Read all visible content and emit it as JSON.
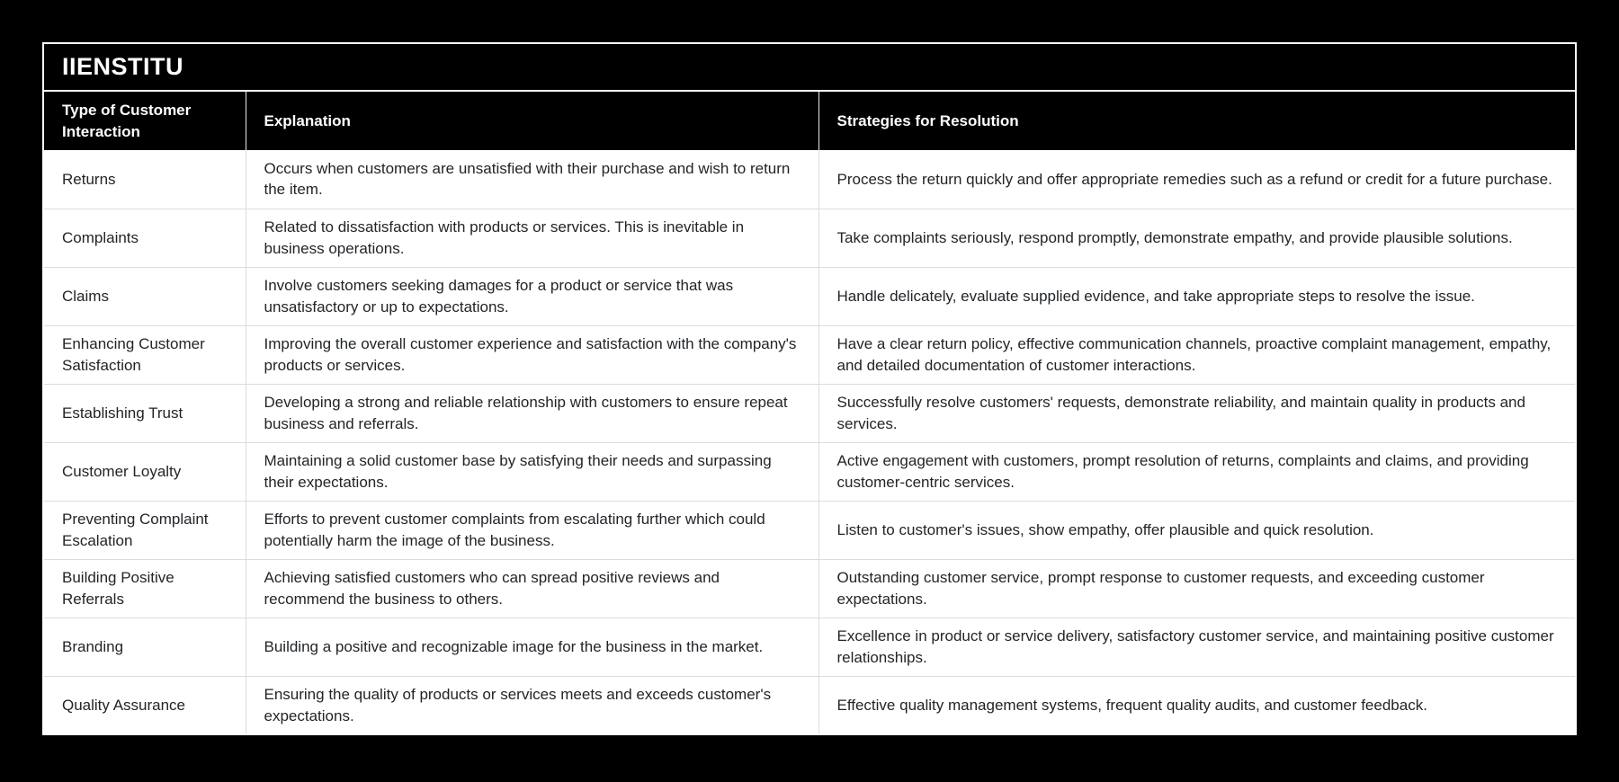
{
  "page": {
    "background_color": "#000000"
  },
  "card": {
    "title": "IIENSTITU",
    "border_color": "#ffffff",
    "title_bg_color": "#000000",
    "title_text_color": "#ffffff"
  },
  "table": {
    "header_bg_color": "#000000",
    "header_text_color": "#ffffff",
    "body_bg_color": "#ffffff",
    "body_text_color": "#212529",
    "grid_line_color": "#dcdcdc",
    "columns": [
      "Type of Customer Interaction",
      "Explanation",
      "Strategies for Resolution"
    ],
    "rows": [
      {
        "type": "Returns",
        "explanation": "Occurs when customers are unsatisfied with their purchase and wish to return the item.",
        "strategy": "Process the return quickly and offer appropriate remedies such as a refund or credit for a future purchase."
      },
      {
        "type": "Complaints",
        "explanation": "Related to dissatisfaction with products or services. This is inevitable in business operations.",
        "strategy": "Take complaints seriously, respond promptly, demonstrate empathy, and provide plausible solutions."
      },
      {
        "type": "Claims",
        "explanation": "Involve customers seeking damages for a product or service that was unsatisfactory or up to expectations.",
        "strategy": "Handle delicately, evaluate supplied evidence, and take appropriate steps to resolve the issue."
      },
      {
        "type": "Enhancing Customer Satisfaction",
        "explanation": "Improving the overall customer experience and satisfaction with the company's products or services.",
        "strategy": "Have a clear return policy, effective communication channels, proactive complaint management, empathy, and detailed documentation of customer interactions."
      },
      {
        "type": "Establishing Trust",
        "explanation": "Developing a strong and reliable relationship with customers to ensure repeat business and referrals.",
        "strategy": "Successfully resolve customers' requests, demonstrate reliability, and maintain quality in products and services."
      },
      {
        "type": "Customer Loyalty",
        "explanation": "Maintaining a solid customer base by satisfying their needs and surpassing their expectations.",
        "strategy": "Active engagement with customers, prompt resolution of returns, complaints and claims, and providing customer-centric services."
      },
      {
        "type": "Preventing Complaint Escalation",
        "explanation": "Efforts to prevent customer complaints from escalating further which could potentially harm the image of the business.",
        "strategy": "Listen to customer's issues, show empathy, offer plausible and quick resolution."
      },
      {
        "type": "Building Positive Referrals",
        "explanation": "Achieving satisfied customers who can spread positive reviews and recommend the business to others.",
        "strategy": "Outstanding customer service, prompt response to customer requests, and exceeding customer expectations."
      },
      {
        "type": "Branding",
        "explanation": "Building a positive and recognizable image for the business in the market.",
        "strategy": "Excellence in product or service delivery, satisfactory customer service, and maintaining positive customer relationships."
      },
      {
        "type": "Quality Assurance",
        "explanation": "Ensuring the quality of products or services meets and exceeds customer's expectations.",
        "strategy": "Effective quality management systems, frequent quality audits, and customer feedback."
      }
    ]
  }
}
